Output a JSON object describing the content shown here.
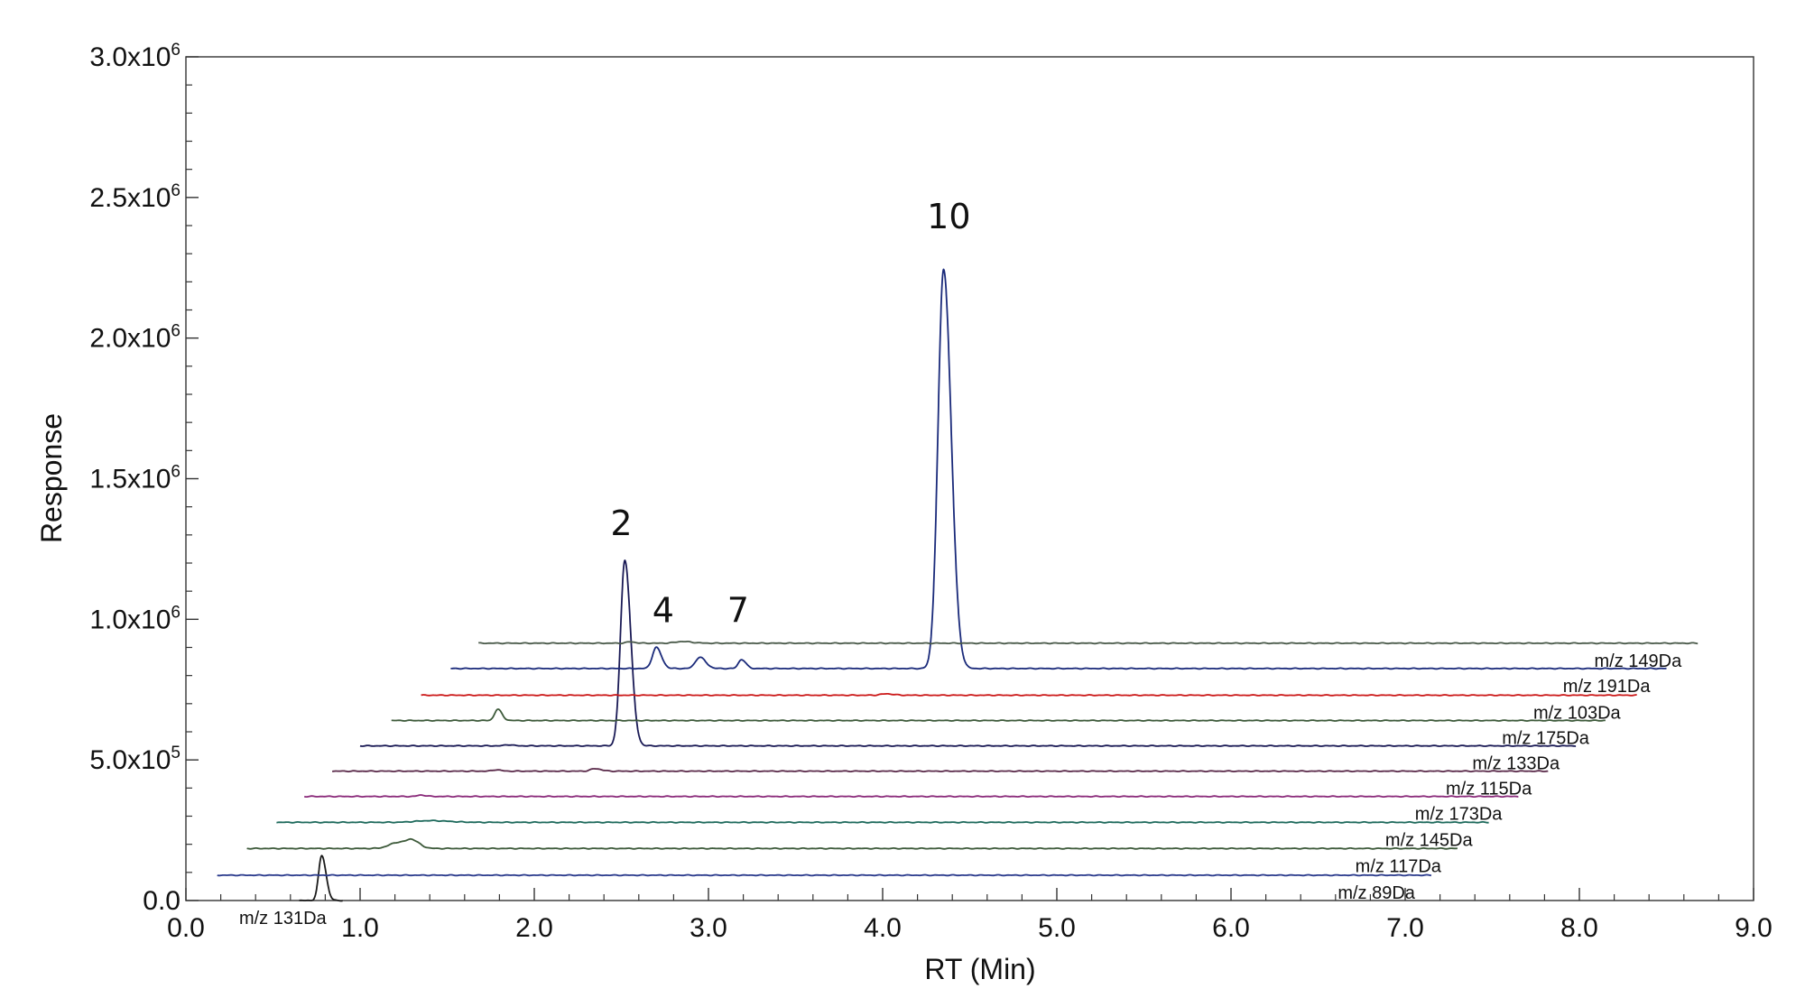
{
  "chart_data": {
    "type": "line",
    "title": "",
    "xlabel": "RT (Min)",
    "ylabel": "Response",
    "xlim": [
      0,
      9
    ],
    "ylim": [
      0,
      3000000
    ],
    "x_ticks": [
      "0.0",
      "1.0",
      "2.0",
      "3.0",
      "4.0",
      "5.0",
      "6.0",
      "7.0",
      "8.0",
      "9.0"
    ],
    "y_ticks": [
      {
        "mantissa": "0.0",
        "exp": ""
      },
      {
        "mantissa": "5.0x10",
        "exp": "5"
      },
      {
        "mantissa": "1.0x10",
        "exp": "6"
      },
      {
        "mantissa": "1.5x10",
        "exp": "6"
      },
      {
        "mantissa": "2.0x10",
        "exp": "6"
      },
      {
        "mantissa": "2.5x10",
        "exp": "6"
      },
      {
        "mantissa": "3.0x10",
        "exp": "6"
      }
    ],
    "grid": false,
    "layout": "stacked offset chromatograms, each trace shifted right and up",
    "series": [
      {
        "name": "m/z 131Da",
        "color": "#1a1a1a",
        "x_start": 0.65,
        "x_end": 0.9,
        "baseline": 0,
        "peaks": [
          {
            "rt": 0.78,
            "height": 160000,
            "width": 0.018
          }
        ]
      },
      {
        "name": "m/z 89Da",
        "color": "#2a3a8c",
        "x_start": 0.18,
        "x_end": 7.15,
        "baseline": 90000,
        "peaks": []
      },
      {
        "name": "m/z 117Da",
        "color": "#3d5a3a",
        "x_start": 0.35,
        "x_end": 7.3,
        "baseline": 185000,
        "peaks": [
          {
            "rt": 1.22,
            "height": 22000,
            "width": 0.05
          },
          {
            "rt": 1.3,
            "height": 22000,
            "width": 0.03
          }
        ]
      },
      {
        "name": "m/z 145Da",
        "color": "#1e6a5c",
        "x_start": 0.52,
        "x_end": 7.48,
        "baseline": 278000,
        "peaks": [
          {
            "rt": 1.4,
            "height": 6000,
            "width": 0.08
          }
        ]
      },
      {
        "name": "m/z 173Da",
        "color": "#8a2a7a",
        "x_start": 0.68,
        "x_end": 7.65,
        "baseline": 370000,
        "peaks": [
          {
            "rt": 1.35,
            "height": 5000,
            "width": 0.02
          }
        ]
      },
      {
        "name": "m/z 115Da",
        "color": "#5a2a4a",
        "x_start": 0.84,
        "x_end": 7.82,
        "baseline": 460000,
        "peaks": [
          {
            "rt": 1.78,
            "height": 5000,
            "width": 0.02
          },
          {
            "rt": 2.35,
            "height": 9000,
            "width": 0.025
          }
        ]
      },
      {
        "name": "m/z 133Da",
        "color": "#1a1a55",
        "x_start": 1.0,
        "x_end": 7.98,
        "baseline": 550000,
        "peaks": [
          {
            "rt": 1.85,
            "height": 4000,
            "width": 0.02
          },
          {
            "rt": 2.52,
            "height": 660000,
            "width": 0.025
          }
        ]
      },
      {
        "name": "m/z 175Da",
        "color": "#3d5a3a",
        "x_start": 1.18,
        "x_end": 8.15,
        "baseline": 640000,
        "peaks": [
          {
            "rt": 1.79,
            "height": 40000,
            "width": 0.018
          }
        ]
      },
      {
        "name": "m/z 103Da",
        "color": "#cc1a1a",
        "x_start": 1.35,
        "x_end": 8.33,
        "baseline": 730000,
        "peaks": [
          {
            "rt": 4.02,
            "height": 5000,
            "width": 0.03
          }
        ]
      },
      {
        "name": "m/z 191Da",
        "color": "#1a2a7a",
        "x_start": 1.52,
        "x_end": 8.5,
        "baseline": 825000,
        "peaks": [
          {
            "rt": 2.7,
            "height": 75000,
            "width": 0.022
          },
          {
            "rt": 2.95,
            "height": 40000,
            "width": 0.025
          },
          {
            "rt": 3.19,
            "height": 32000,
            "width": 0.018
          },
          {
            "rt": 4.35,
            "height": 1420000,
            "width": 0.032
          }
        ]
      },
      {
        "name": "m/z 149Da",
        "color": "#4a5a4a",
        "x_start": 1.68,
        "x_end": 8.68,
        "baseline": 915000,
        "peaks": [
          {
            "rt": 2.55,
            "height": 5000,
            "width": 0.02
          },
          {
            "rt": 2.85,
            "height": 6000,
            "width": 0.04
          }
        ]
      }
    ],
    "annotations": [
      {
        "text": "2",
        "x": 2.5,
        "y": 1300000
      },
      {
        "text": "4",
        "x": 2.74,
        "y": 990000
      },
      {
        "text": "7",
        "x": 3.17,
        "y": 990000
      },
      {
        "text": "10",
        "x": 4.38,
        "y": 2390000
      }
    ]
  }
}
